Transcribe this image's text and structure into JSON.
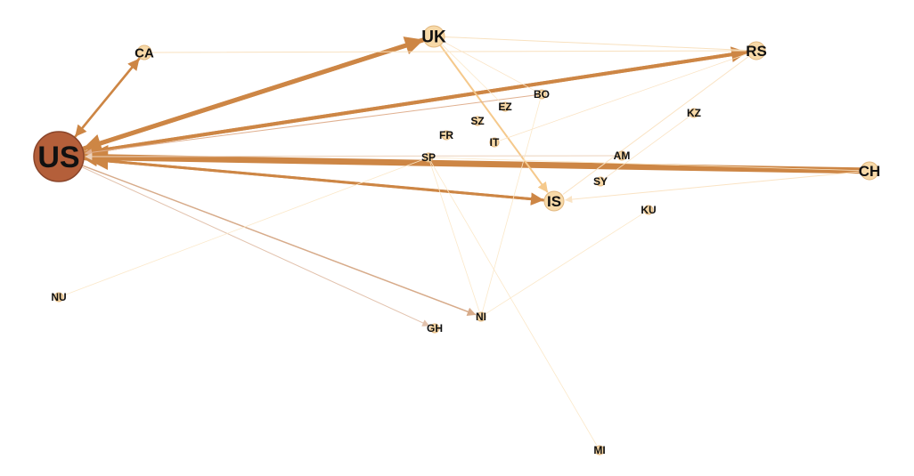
{
  "graph": {
    "nodes": [
      {
        "id": "US",
        "label": "US",
        "role": "hub"
      },
      {
        "id": "CA",
        "label": "CA"
      },
      {
        "id": "UK",
        "label": "UK"
      },
      {
        "id": "RS",
        "label": "RS"
      },
      {
        "id": "CH",
        "label": "CH"
      },
      {
        "id": "IS",
        "label": "IS"
      },
      {
        "id": "BO",
        "label": "BO"
      },
      {
        "id": "EZ",
        "label": "EZ"
      },
      {
        "id": "SZ",
        "label": "SZ"
      },
      {
        "id": "FR",
        "label": "FR"
      },
      {
        "id": "IT",
        "label": "IT"
      },
      {
        "id": "KZ",
        "label": "KZ"
      },
      {
        "id": "AM",
        "label": "AM"
      },
      {
        "id": "SP",
        "label": "SP"
      },
      {
        "id": "SY",
        "label": "SY"
      },
      {
        "id": "KU",
        "label": "KU"
      },
      {
        "id": "NU",
        "label": "NU"
      },
      {
        "id": "NI",
        "label": "NI"
      },
      {
        "id": "GH",
        "label": "GH"
      },
      {
        "id": "MI",
        "label": "MI"
      }
    ],
    "edges": [
      {
        "from": "CH",
        "to": "US",
        "weight": 7,
        "color": "#cd8645",
        "arrow": true
      },
      {
        "from": "UK",
        "to": "US",
        "weight": 5,
        "color": "#cd8645",
        "arrow": true
      },
      {
        "from": "US",
        "to": "UK",
        "weight": 5,
        "color": "#cd8645",
        "arrow": true
      },
      {
        "from": "RS",
        "to": "US",
        "weight": 4,
        "color": "#cd8645",
        "arrow": true
      },
      {
        "from": "US",
        "to": "RS",
        "weight": 4,
        "color": "#cd8645",
        "arrow": true
      },
      {
        "from": "IS",
        "to": "US",
        "weight": 3,
        "color": "#cd8645",
        "arrow": true
      },
      {
        "from": "US",
        "to": "IS",
        "weight": 3,
        "color": "#cd8645",
        "arrow": true
      },
      {
        "from": "CA",
        "to": "US",
        "weight": 2.5,
        "color": "#cd8645",
        "arrow": true
      },
      {
        "from": "US",
        "to": "CA",
        "weight": 2.5,
        "color": "#cd8645",
        "arrow": true
      },
      {
        "from": "UK",
        "to": "IS",
        "weight": 2,
        "color": "#f5c98c",
        "arrow": true
      },
      {
        "from": "US",
        "to": "NI",
        "weight": 1.5,
        "color": "#d7ab8a",
        "arrow": true
      },
      {
        "from": "US",
        "to": "GH",
        "weight": 1,
        "color": "#e2c2ad",
        "arrow": true
      },
      {
        "from": "BO",
        "to": "US",
        "weight": 1,
        "color": "#e0b090",
        "arrow": true
      },
      {
        "from": "AM",
        "to": "US",
        "weight": 1,
        "color": "#ecd2bc",
        "arrow": true
      },
      {
        "from": "CA",
        "to": "RS",
        "weight": 1,
        "color": "#f8e1bf",
        "arrow": false
      },
      {
        "from": "UK",
        "to": "RS",
        "weight": 1,
        "color": "#f8e1bf",
        "arrow": false
      },
      {
        "from": "CH",
        "to": "IS",
        "weight": 1,
        "color": "#fae3c4",
        "arrow": true
      },
      {
        "from": "RS",
        "to": "IS",
        "weight": 1,
        "color": "#fae3c4",
        "arrow": false
      },
      {
        "from": "KZ",
        "to": "SY",
        "weight": 0.8,
        "color": "#fae3c4",
        "arrow": false
      },
      {
        "from": "RS",
        "to": "IT",
        "weight": 0.8,
        "color": "#fae3c4",
        "arrow": false
      },
      {
        "from": "UK",
        "to": "BO",
        "weight": 0.8,
        "color": "#fae3c4",
        "arrow": false
      },
      {
        "from": "NU",
        "to": "SP",
        "weight": 0.8,
        "color": "#fbe8c9",
        "arrow": false
      },
      {
        "from": "SP",
        "to": "CH",
        "weight": 0.8,
        "color": "#fbe8c9",
        "arrow": false
      },
      {
        "from": "NI",
        "to": "KU",
        "weight": 0.8,
        "color": "#fbe8c9",
        "arrow": false
      },
      {
        "from": "NI",
        "to": "BO",
        "weight": 0.8,
        "color": "#fbe8c9",
        "arrow": false
      },
      {
        "from": "SP",
        "to": "NI",
        "weight": 0.8,
        "color": "#fbe8c9",
        "arrow": false
      },
      {
        "from": "SP",
        "to": "MI",
        "weight": 0.8,
        "color": "#fbe8c9",
        "arrow": false
      },
      {
        "from": "UK",
        "to": "EZ",
        "weight": 0.8,
        "color": "#fbe8c9",
        "arrow": false
      }
    ],
    "colors": {
      "hub_fill": "#b45f3a",
      "hub_stroke": "#8a452a",
      "node_fill": "#f7d9a8",
      "node_stroke": "#e2b880",
      "background": "#ffffff"
    }
  }
}
